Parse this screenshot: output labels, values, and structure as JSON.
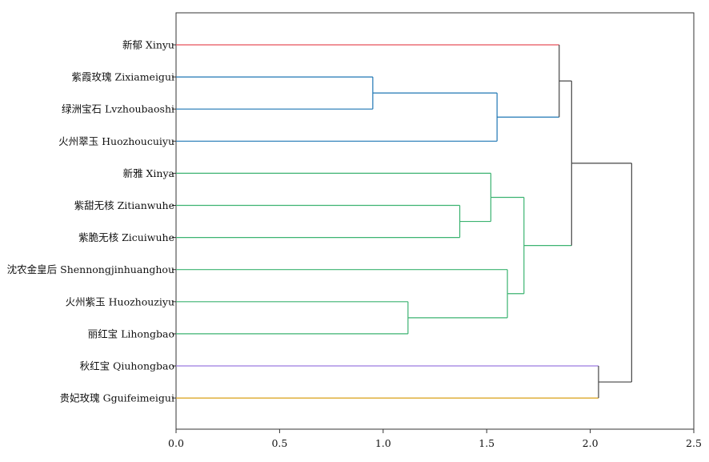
{
  "chart_data": {
    "type": "dendrogram",
    "orientation": "horizontal",
    "xlim": [
      0,
      2.5
    ],
    "xticks": [
      0.0,
      0.5,
      1.0,
      1.5,
      2.0,
      2.5
    ],
    "xtick_labels": [
      "0.0",
      "0.5",
      "1.0",
      "1.5",
      "2.0",
      "2.5"
    ],
    "leaves": [
      "新郁 Xinyu",
      "紫霞玫瑰 Zixiameigui",
      "绿洲宝石 Lvzhoubaoshi",
      "火州翠玉 Huozhoucuiyu",
      "新雅 Xinya",
      "紫甜无核 Zitianwuhe",
      "紫脆无核 Zicuiwuhe",
      "沈农金皇后 Shennongjinhuanghou",
      "火州紫玉 Huozhouziyu",
      "丽红宝 Lihongbao",
      "秋红宝 Qiuhongbao",
      "贵妃玫瑰 Gguifeimeigui"
    ],
    "merges": [
      {
        "id": "m1",
        "left": "L1",
        "right": "L2",
        "height": 0.95,
        "color": "#1f77b4"
      },
      {
        "id": "m2",
        "left": "m1",
        "right": "L3",
        "height": 1.55,
        "color": "#1f77b4"
      },
      {
        "id": "m3",
        "left": "L0",
        "right": "m2",
        "height": 1.85,
        "color": "#444444"
      },
      {
        "id": "m4",
        "left": "L5",
        "right": "L6",
        "height": 1.37,
        "color": "#3cb371"
      },
      {
        "id": "m5",
        "left": "L4",
        "right": "m4",
        "height": 1.52,
        "color": "#3cb371"
      },
      {
        "id": "m6",
        "left": "L8",
        "right": "L9",
        "height": 1.12,
        "color": "#3cb371"
      },
      {
        "id": "m7",
        "left": "L7",
        "right": "m6",
        "height": 1.6,
        "color": "#3cb371"
      },
      {
        "id": "m8",
        "left": "m5",
        "right": "m7",
        "height": 1.68,
        "color": "#3cb371"
      },
      {
        "id": "m9",
        "left": "m3",
        "right": "m8",
        "height": 1.91,
        "color": "#444444"
      },
      {
        "id": "m10",
        "left": "L10",
        "right": "L11",
        "height": 2.04,
        "color": "#444444"
      },
      {
        "id": "m11",
        "left": "m9",
        "right": "m10",
        "height": 2.2,
        "color": "#444444"
      }
    ],
    "leaf_colors": {
      "L0": "#e8505b",
      "L1": "#1f77b4",
      "L2": "#1f77b4",
      "L3": "#1f77b4",
      "L4": "#3cb371",
      "L5": "#3cb371",
      "L6": "#3cb371",
      "L7": "#3cb371",
      "L8": "#3cb371",
      "L9": "#3cb371",
      "L10": "#9b7be0",
      "L11": "#d9a017"
    },
    "title": "",
    "xlabel": "",
    "ylabel": "",
    "grid": false
  }
}
